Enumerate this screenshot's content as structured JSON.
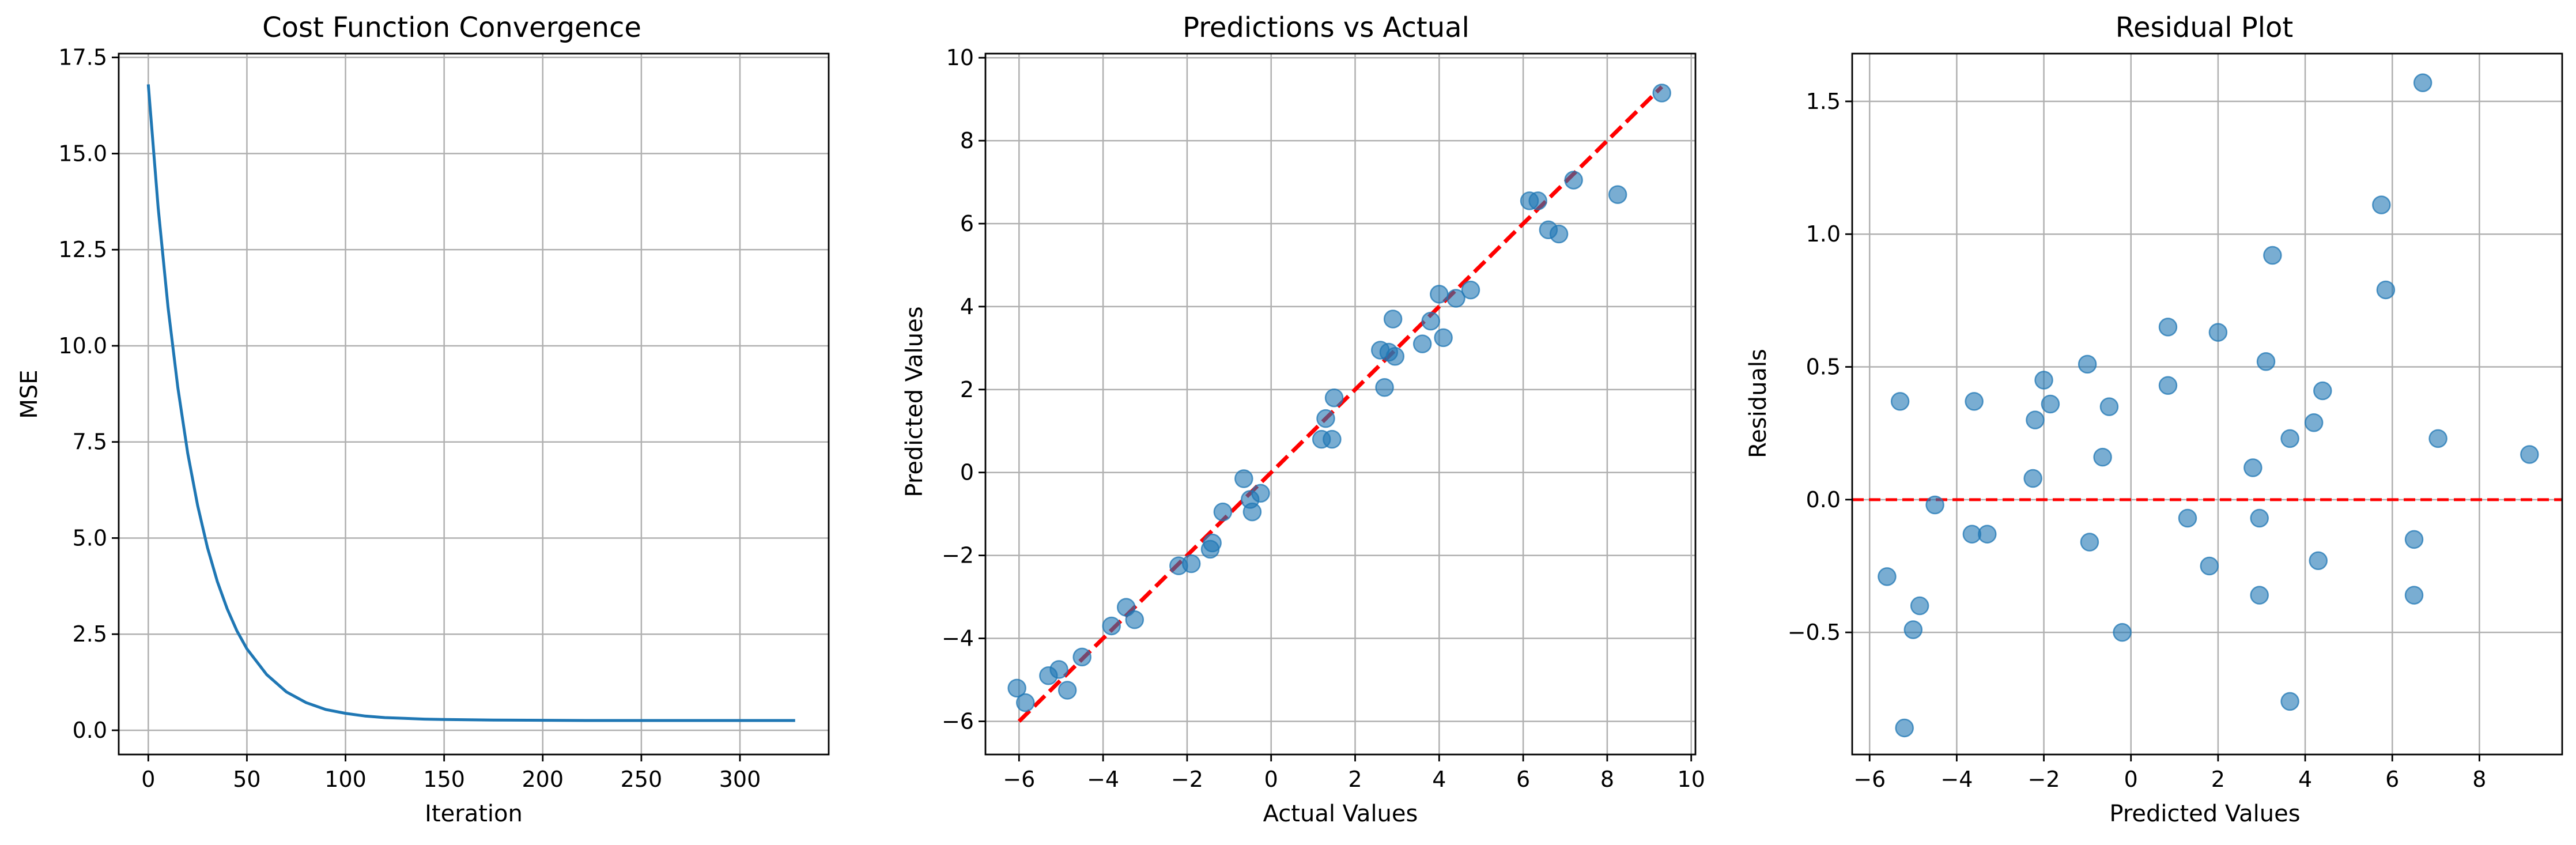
{
  "chart_data": [
    {
      "type": "line",
      "title": "Cost Function Convergence",
      "xlabel": "Iteration",
      "ylabel": "MSE",
      "xlim": [
        -15,
        345
      ],
      "ylim": [
        -0.63,
        17.6
      ],
      "xticks": [
        0,
        50,
        100,
        150,
        200,
        250,
        300
      ],
      "yticks": [
        0.0,
        2.5,
        5.0,
        7.5,
        10.0,
        12.5,
        15.0,
        17.5
      ],
      "xtick_labels": [
        "0",
        "50",
        "100",
        "150",
        "200",
        "250",
        "300"
      ],
      "ytick_labels": [
        "0.0",
        "2.5",
        "5.0",
        "7.5",
        "10.0",
        "12.5",
        "15.0",
        "17.5"
      ],
      "grid": true,
      "color": "#1f77b4",
      "series": [
        {
          "x": [
            0,
            5,
            10,
            15,
            20,
            25,
            30,
            35,
            40,
            45,
            50,
            60,
            70,
            80,
            90,
            100,
            110,
            120,
            130,
            140,
            150,
            175,
            200,
            225,
            250,
            275,
            300,
            328
          ],
          "y": [
            16.8,
            13.6,
            11.0,
            8.9,
            7.2,
            5.85,
            4.75,
            3.87,
            3.16,
            2.58,
            2.12,
            1.45,
            1.0,
            0.72,
            0.54,
            0.44,
            0.37,
            0.33,
            0.31,
            0.29,
            0.28,
            0.265,
            0.26,
            0.255,
            0.255,
            0.255,
            0.255,
            0.255
          ]
        }
      ]
    },
    {
      "type": "scatter",
      "title": "Predictions vs Actual",
      "xlabel": "Actual Values",
      "ylabel": "Predicted Values",
      "xlim": [
        -6.8,
        10.1
      ],
      "ylim": [
        -6.8,
        10.1
      ],
      "xticks": [
        -6,
        -4,
        -2,
        0,
        2,
        4,
        6,
        8,
        10
      ],
      "yticks": [
        -6,
        -4,
        -2,
        0,
        2,
        4,
        6,
        8,
        10
      ],
      "xtick_labels": [
        "−6",
        "−4",
        "−2",
        "0",
        "2",
        "4",
        "6",
        "8",
        "10"
      ],
      "ytick_labels": [
        "−6",
        "−4",
        "−2",
        "0",
        "2",
        "4",
        "6",
        "8",
        "10"
      ],
      "grid": true,
      "color": "#1f77b4",
      "reference_line": {
        "x": [
          -6,
          9.3
        ],
        "y": [
          -6,
          9.3
        ],
        "color": "#ff0000",
        "style": "dashed"
      },
      "points": {
        "x": [
          -6.05,
          -5.85,
          -5.3,
          -5.05,
          -4.85,
          -4.5,
          -3.8,
          -3.45,
          -3.25,
          -2.2,
          -1.9,
          -1.45,
          -1.4,
          -1.15,
          -0.65,
          -0.5,
          -0.45,
          -0.25,
          1.2,
          1.3,
          1.45,
          1.5,
          2.6,
          2.7,
          2.8,
          2.9,
          2.95,
          3.6,
          3.8,
          4.0,
          4.1,
          4.4,
          4.75,
          6.15,
          6.35,
          6.6,
          6.85,
          7.2,
          8.25,
          9.3
        ],
        "y": [
          -5.2,
          -5.55,
          -4.9,
          -4.75,
          -5.25,
          -4.45,
          -3.7,
          -3.25,
          -3.55,
          -2.25,
          -2.2,
          -1.85,
          -1.7,
          -0.95,
          -0.15,
          -0.65,
          -0.95,
          -0.5,
          0.8,
          1.3,
          0.8,
          1.8,
          2.95,
          2.05,
          2.9,
          3.7,
          2.8,
          3.1,
          3.65,
          4.3,
          3.25,
          4.2,
          4.4,
          6.55,
          6.55,
          5.85,
          5.75,
          7.05,
          6.7,
          9.15
        ]
      }
    },
    {
      "type": "scatter",
      "title": "Residual Plot",
      "xlabel": "Predicted Values",
      "ylabel": "Residuals",
      "xlim": [
        -6.4,
        9.9
      ],
      "ylim": [
        -0.96,
        1.68
      ],
      "xticks": [
        -6,
        -4,
        -2,
        0,
        2,
        4,
        6,
        8
      ],
      "yticks": [
        -0.5,
        0.0,
        0.5,
        1.0,
        1.5
      ],
      "xtick_labels": [
        "−6",
        "−4",
        "−2",
        "0",
        "2",
        "4",
        "6",
        "8"
      ],
      "ytick_labels": [
        "−0.5",
        "0.0",
        "0.5",
        "1.0",
        "1.5"
      ],
      "grid": true,
      "color": "#1f77b4",
      "reference_line": {
        "y": 0.0,
        "color": "#ff0000",
        "style": "dashed"
      },
      "points": {
        "x": [
          -5.6,
          -5.3,
          -5.2,
          -5.0,
          -4.85,
          -4.5,
          -3.65,
          -3.6,
          -3.3,
          -2.25,
          -2.2,
          -2.0,
          -1.85,
          -1.0,
          -0.95,
          -0.65,
          -0.5,
          -0.2,
          0.85,
          0.85,
          1.3,
          1.8,
          2.0,
          2.8,
          2.95,
          2.95,
          3.1,
          3.25,
          3.65,
          3.65,
          4.2,
          4.3,
          4.4,
          5.75,
          5.85,
          6.5,
          6.5,
          6.7,
          7.05,
          9.15
        ],
        "y": [
          -0.29,
          0.37,
          -0.86,
          -0.49,
          -0.4,
          -0.02,
          -0.13,
          0.37,
          -0.13,
          0.08,
          0.3,
          0.45,
          0.36,
          0.51,
          -0.16,
          0.16,
          0.35,
          -0.5,
          0.43,
          0.65,
          -0.07,
          -0.25,
          0.63,
          0.12,
          -0.36,
          -0.07,
          0.52,
          0.92,
          -0.76,
          0.23,
          0.29,
          -0.23,
          0.41,
          1.11,
          0.79,
          -0.15,
          -0.36,
          1.57,
          0.23,
          0.17
        ]
      }
    }
  ]
}
